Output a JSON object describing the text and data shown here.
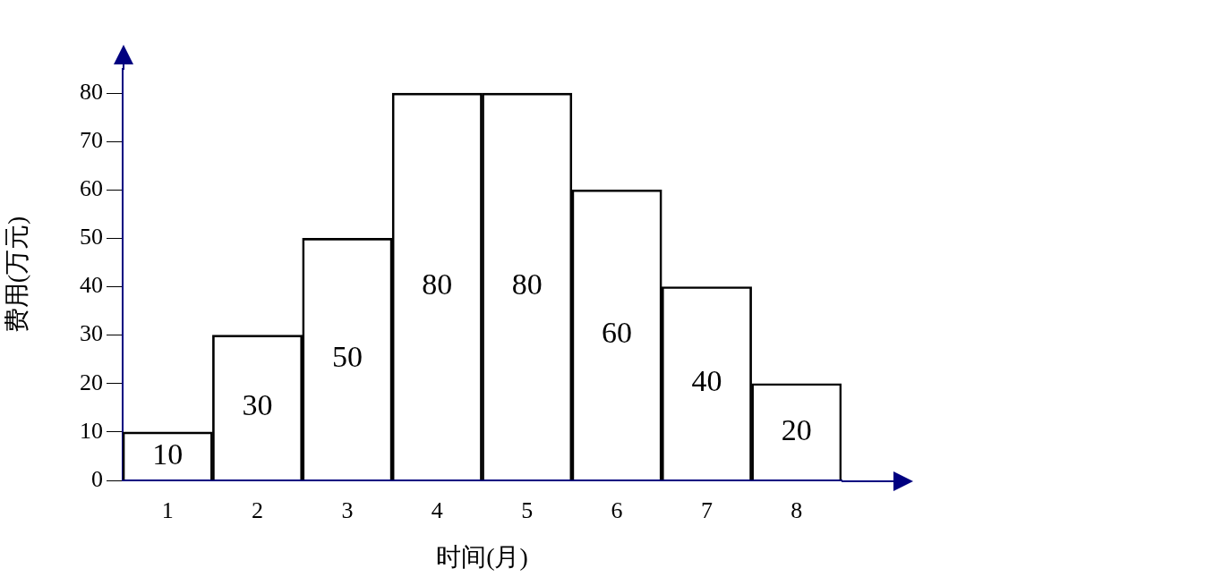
{
  "chart_data": {
    "type": "bar",
    "xlabel": "时间(月)",
    "ylabel": "费用(万元)",
    "categories": [
      "1",
      "2",
      "3",
      "4",
      "5",
      "6",
      "7",
      "8"
    ],
    "values": [
      10,
      30,
      50,
      80,
      80,
      60,
      40,
      20
    ],
    "color": "#000000",
    "ylim": [
      0,
      85
    ],
    "yticks": [
      0,
      10,
      20,
      30,
      40,
      50,
      60,
      70,
      80
    ],
    "data_labels": true,
    "grid": false,
    "legend": false
  }
}
